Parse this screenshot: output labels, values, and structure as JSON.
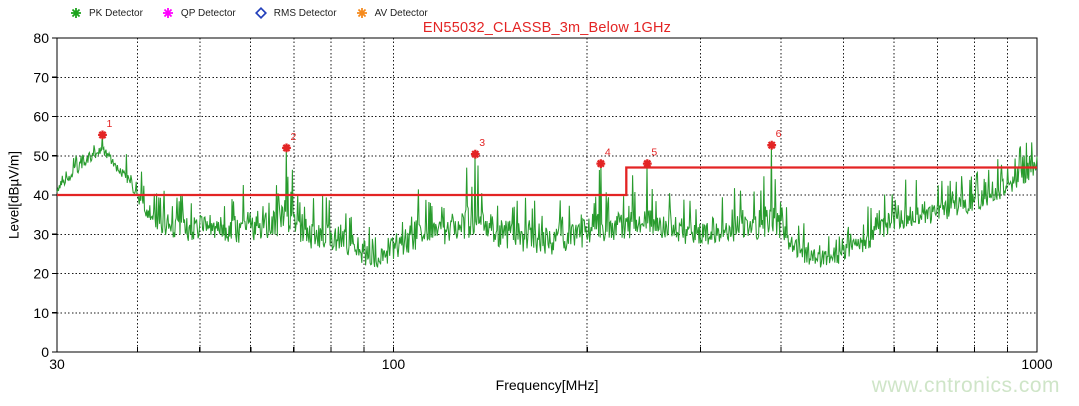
{
  "title": {
    "text": "EN55032_CLASSB_3m_Below 1GHz",
    "color": "#e32424"
  },
  "watermark": {
    "text": "www.cntronics.com",
    "color": "#cfe5c8"
  },
  "legend": {
    "items": [
      {
        "label": "PK Detector",
        "color": "#1ba31b",
        "marker": "asterisk"
      },
      {
        "label": "QP Detector",
        "color": "#ff00ff",
        "marker": "asterisk"
      },
      {
        "label": "RMS Detector",
        "color": "#2340bb",
        "marker": "diamond"
      },
      {
        "label": "AV Detector",
        "color": "#f58a1d",
        "marker": "asterisk"
      }
    ]
  },
  "chart_data": {
    "type": "line",
    "title": "EN55032_CLASSB_3m_Below 1GHz",
    "xlabel": "Frequency[MHz]",
    "ylabel": "Level[dBµV/m]",
    "x_scale": "log",
    "x_range": [
      30,
      1000
    ],
    "y_range": [
      0,
      80
    ],
    "x_major_ticks": [
      30,
      100,
      1000
    ],
    "x_minor_gridlines": [
      40,
      50,
      60,
      70,
      80,
      90,
      100,
      200,
      300,
      400,
      500,
      600,
      700,
      800,
      900
    ],
    "y_ticks": [
      0,
      10,
      20,
      30,
      40,
      50,
      60,
      70,
      80
    ],
    "grid": "dashed",
    "legend_position": "top-left",
    "trace_color": "#289b2d",
    "limit_color": "#e32424",
    "limit_line": {
      "name": "EN55032 Class B 3m limit",
      "points_mhz_db": [
        [
          30,
          40
        ],
        [
          230,
          40
        ],
        [
          230,
          47
        ],
        [
          1000,
          47
        ]
      ]
    },
    "markers": [
      {
        "id": 1,
        "freq_mhz": 35.3,
        "level_db": 55.3
      },
      {
        "id": 2,
        "freq_mhz": 68.2,
        "level_db": 52.0
      },
      {
        "id": 3,
        "freq_mhz": 134.0,
        "level_db": 50.4
      },
      {
        "id": 4,
        "freq_mhz": 210.0,
        "level_db": 48.0
      },
      {
        "id": 5,
        "freq_mhz": 248.0,
        "level_db": 48.0
      },
      {
        "id": 6,
        "freq_mhz": 387.0,
        "level_db": 52.7
      }
    ],
    "series": [
      {
        "name": "PK Detector",
        "envelope_mhz_lo_hi": [
          [
            30,
            40,
            44
          ],
          [
            33,
            46,
            54
          ],
          [
            35.3,
            50,
            55.4
          ],
          [
            37,
            45,
            53
          ],
          [
            39,
            41,
            50
          ],
          [
            41,
            32,
            46
          ],
          [
            44,
            28,
            43
          ],
          [
            48,
            26,
            42
          ],
          [
            52,
            26,
            45
          ],
          [
            56,
            25,
            44
          ],
          [
            60,
            26,
            46
          ],
          [
            64,
            25,
            44
          ],
          [
            68.2,
            27,
            52
          ],
          [
            71,
            25,
            43
          ],
          [
            75,
            24,
            41
          ],
          [
            80,
            24,
            42
          ],
          [
            85,
            22,
            40
          ],
          [
            90,
            20,
            37
          ],
          [
            95,
            19,
            34
          ],
          [
            100,
            21,
            38
          ],
          [
            106,
            23,
            42
          ],
          [
            112,
            24,
            43
          ],
          [
            120,
            25,
            45
          ],
          [
            127,
            25,
            46
          ],
          [
            134,
            26,
            50.4
          ],
          [
            140,
            25,
            47
          ],
          [
            148,
            24,
            45
          ],
          [
            156,
            23,
            44
          ],
          [
            165,
            23,
            42
          ],
          [
            175,
            22,
            40
          ],
          [
            185,
            23,
            41
          ],
          [
            195,
            24,
            43
          ],
          [
            205,
            25,
            46
          ],
          [
            210,
            26,
            48
          ],
          [
            218,
            25,
            44
          ],
          [
            228,
            26,
            45
          ],
          [
            240,
            26,
            46
          ],
          [
            248,
            27,
            48
          ],
          [
            258,
            26,
            44
          ],
          [
            272,
            26,
            43
          ],
          [
            290,
            25,
            42
          ],
          [
            310,
            25,
            41
          ],
          [
            330,
            26,
            42
          ],
          [
            355,
            26,
            44
          ],
          [
            370,
            26,
            46
          ],
          [
            387,
            27,
            52.7
          ],
          [
            400,
            26,
            45
          ],
          [
            415,
            23,
            39
          ],
          [
            435,
            21,
            35
          ],
          [
            455,
            20,
            32
          ],
          [
            475,
            20,
            32
          ],
          [
            495,
            21,
            33
          ],
          [
            515,
            22,
            35
          ],
          [
            540,
            24,
            37
          ],
          [
            565,
            26,
            40
          ],
          [
            590,
            28,
            44
          ],
          [
            612,
            29,
            47
          ],
          [
            635,
            30,
            44
          ],
          [
            660,
            31,
            45
          ],
          [
            690,
            31,
            44
          ],
          [
            720,
            32,
            45
          ],
          [
            755,
            33,
            46
          ],
          [
            790,
            34,
            46
          ],
          [
            825,
            35,
            48
          ],
          [
            860,
            37,
            49
          ],
          [
            895,
            38,
            51
          ],
          [
            930,
            40,
            53
          ],
          [
            960,
            41,
            55
          ],
          [
            985,
            43,
            56
          ],
          [
            1000,
            43,
            57
          ]
        ]
      }
    ]
  }
}
